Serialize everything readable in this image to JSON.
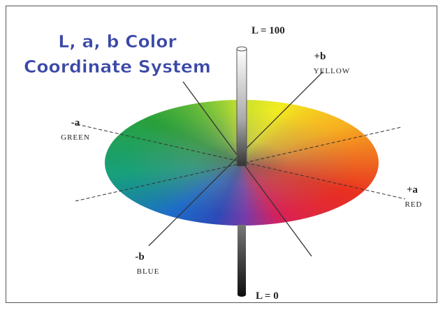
{
  "title": {
    "line1": "L, a, b Color",
    "line2": "Coordinate System"
  },
  "axes": {
    "l_top": "L = 100",
    "l_bottom": "L = 0",
    "plus_b": {
      "sign": "+b",
      "name": "YELLOW"
    },
    "minus_b": {
      "sign": "-b",
      "name": "BLUE"
    },
    "plus_a": {
      "sign": "+a",
      "name": "RED"
    },
    "minus_a": {
      "sign": "-a",
      "name": "GREEN"
    }
  }
}
